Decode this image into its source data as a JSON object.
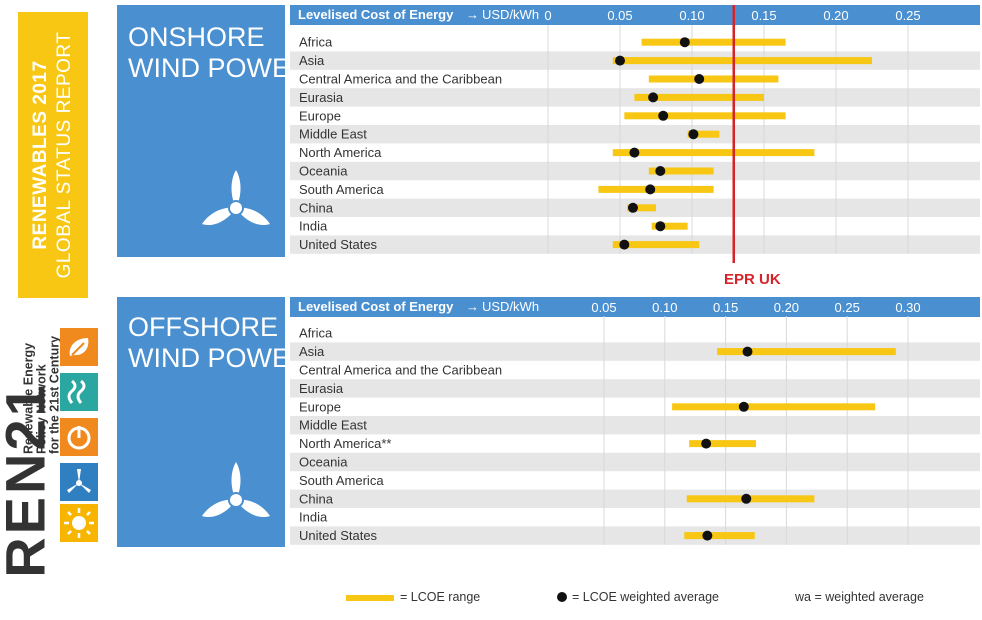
{
  "report": {
    "line1": "RENEWABLES 2017",
    "line2": "GLOBAL STATUS REPORT"
  },
  "organization": {
    "logo_text": "REN21",
    "tagline": [
      "Renewable Energy",
      "Policy Network",
      "for the 21st Century"
    ]
  },
  "colors": {
    "panel_blue": "#4a8fd0",
    "range_yellow": "#f7c714",
    "stripe_grey": "#e6e6e6",
    "epr_red": "#d6232a",
    "dot": "#111111"
  },
  "header": {
    "label": "Levelised Cost of Energy",
    "arrow": "→",
    "unit": "USD/kWh"
  },
  "epr_marker": {
    "label": "EPR UK",
    "value": 0.129
  },
  "legend": {
    "range": "= LCOE range",
    "average": "=  LCOE weighted average",
    "note": "wa = weighted average"
  },
  "chart_data": [
    {
      "type": "range-dot",
      "title": "ONSHORE WIND POWER",
      "title_lines": [
        "ONSHORE",
        "WIND POWER"
      ],
      "xlabel": "Levelised Cost of Energy → USD/kWh",
      "xlim": [
        0,
        0.29
      ],
      "ticks": [
        0,
        0.05,
        0.1,
        0.15,
        0.2,
        0.25
      ],
      "tick_labels": [
        "0",
        "0.05",
        "0.10",
        "0.15",
        "0.20",
        "0.25"
      ],
      "grid": true,
      "categories": [
        "Africa",
        "Asia",
        "Central America and the Caribbean",
        "Eurasia",
        "Europe",
        "Middle East",
        "North America",
        "Oceania",
        "South America",
        "China",
        "India",
        "United States"
      ],
      "range_low": [
        0.065,
        0.045,
        0.07,
        0.06,
        0.053,
        0.097,
        0.045,
        0.07,
        0.035,
        0.055,
        0.072,
        0.045
      ],
      "range_high": [
        0.165,
        0.225,
        0.16,
        0.15,
        0.165,
        0.119,
        0.185,
        0.115,
        0.115,
        0.075,
        0.097,
        0.105
      ],
      "weighted_avg": [
        0.095,
        0.05,
        0.105,
        0.073,
        0.08,
        0.101,
        0.06,
        0.078,
        0.071,
        0.059,
        0.078,
        0.053
      ]
    },
    {
      "type": "range-dot",
      "title": "OFFSHORE WIND POWER",
      "title_lines": [
        "OFFSHORE",
        "WIND POWER"
      ],
      "xlabel": "Levelised Cost of Energy → USD/kWh",
      "xlim": [
        0,
        0.32
      ],
      "ticks": [
        0.05,
        0.1,
        0.15,
        0.2,
        0.25,
        0.3
      ],
      "tick_labels": [
        "0.05",
        "0.10",
        "0.15",
        "0.20",
        "0.25",
        "0.30"
      ],
      "grid": true,
      "categories": [
        "Africa",
        "Asia",
        "Central America and the Caribbean",
        "Eurasia",
        "Europe",
        "Middle East",
        "North America**",
        "Oceania",
        "South America",
        "China",
        "India",
        "United States"
      ],
      "range_low": [
        null,
        0.143,
        null,
        null,
        0.106,
        null,
        0.12,
        null,
        null,
        0.118,
        null,
        0.116
      ],
      "range_high": [
        null,
        0.29,
        null,
        null,
        0.273,
        null,
        0.175,
        null,
        null,
        0.223,
        null,
        0.174
      ],
      "weighted_avg": [
        null,
        0.168,
        null,
        null,
        0.165,
        null,
        0.134,
        null,
        null,
        0.167,
        null,
        0.135
      ]
    }
  ]
}
